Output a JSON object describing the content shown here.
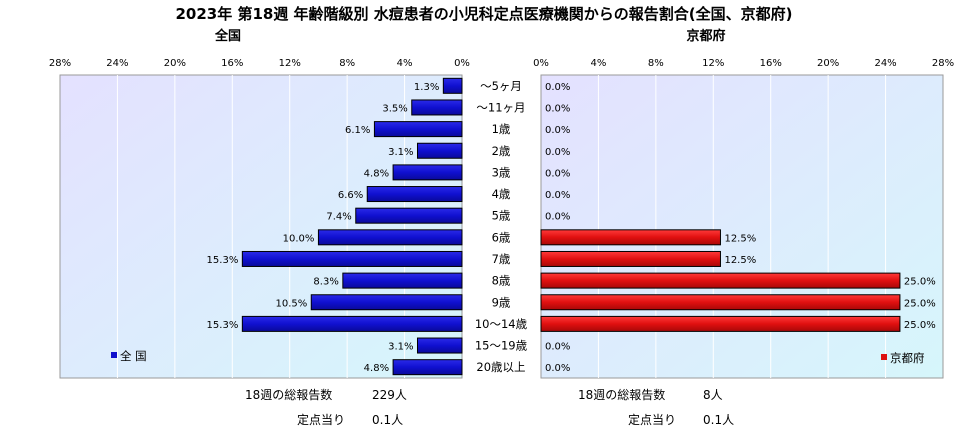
{
  "chart_data": {
    "type": "bar",
    "title": "2023年 第18週 年齢階級別 水痘患者の小児科定点医療機関からの報告割合(全国、京都府)",
    "categories": [
      "～5ヶ月",
      "～11ヶ月",
      "1歳",
      "2歳",
      "3歳",
      "4歳",
      "5歳",
      "6歳",
      "7歳",
      "8歳",
      "9歳",
      "10～14歳",
      "15～19歳",
      "20歳以上"
    ],
    "xlim": [
      0,
      28
    ],
    "ticks": [
      "0%",
      "4%",
      "8%",
      "12%",
      "16%",
      "20%",
      "24%",
      "28%"
    ],
    "series": [
      {
        "name": "全国",
        "panel_title": "全国",
        "legend": "全 国",
        "color": "#1010cc",
        "values": [
          1.3,
          3.5,
          6.1,
          3.1,
          4.8,
          6.6,
          7.4,
          10.0,
          15.3,
          8.3,
          10.5,
          15.3,
          3.1,
          4.8
        ],
        "labels": [
          "1.3%",
          "3.5%",
          "6.1%",
          "3.1%",
          "4.8%",
          "6.6%",
          "7.4%",
          "10.0%",
          "15.3%",
          "8.3%",
          "10.5%",
          "15.3%",
          "3.1%",
          "4.8%"
        ],
        "footer": {
          "label": "18週の総報告数",
          "total": "229人",
          "per_label": "定点当り",
          "per_value": "0.1人"
        }
      },
      {
        "name": "京都府",
        "panel_title": "京都府",
        "legend": "京都府",
        "color": "#dd1010",
        "values": [
          0,
          0,
          0,
          0,
          0,
          0,
          0,
          12.5,
          12.5,
          25.0,
          25.0,
          25.0,
          0,
          0
        ],
        "labels": [
          "0.0%",
          "0.0%",
          "0.0%",
          "0.0%",
          "0.0%",
          "0.0%",
          "0.0%",
          "12.5%",
          "12.5%",
          "25.0%",
          "25.0%",
          "25.0%",
          "0.0%",
          "0.0%"
        ],
        "footer": {
          "label": "18週の総報告数",
          "total": "8人",
          "per_label": "定点当り",
          "per_value": "0.1人"
        }
      }
    ]
  }
}
